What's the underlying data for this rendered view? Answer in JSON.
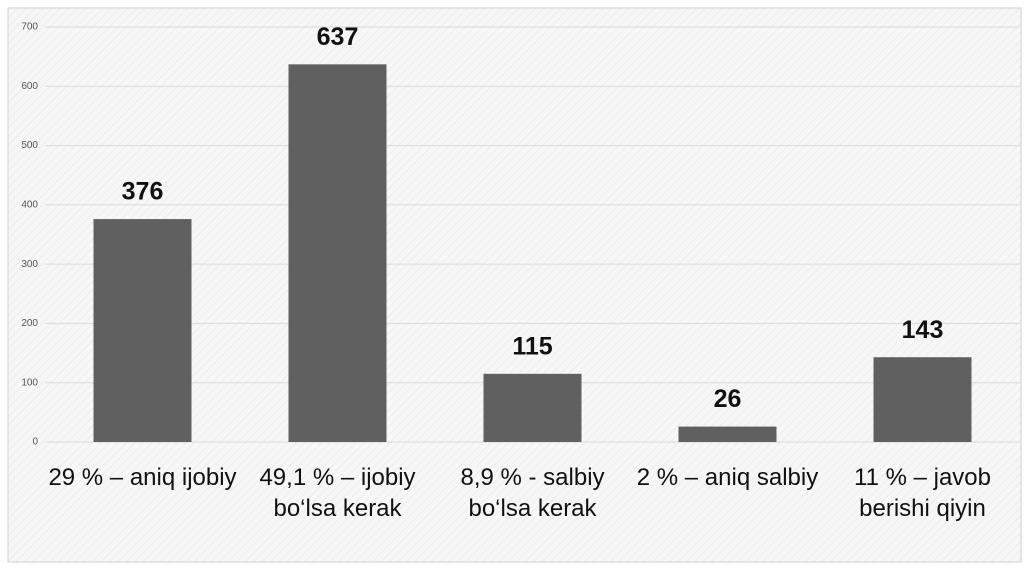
{
  "chart_data": {
    "type": "bar",
    "categories": [
      "29 % – aniq ijobiy",
      "49,1 %  – ijobiy bo‘lsa kerak",
      "8,9 % - salbiy bo‘lsa kerak",
      "2 %  – aniq salbiy",
      "11 %  – javob berishi qiyin"
    ],
    "values": [
      376,
      637,
      115,
      26,
      143
    ],
    "color": "#606060",
    "ylim": [
      0,
      700
    ],
    "yticks": [
      0,
      100,
      200,
      300,
      400,
      500,
      600,
      700
    ],
    "grid": true
  }
}
